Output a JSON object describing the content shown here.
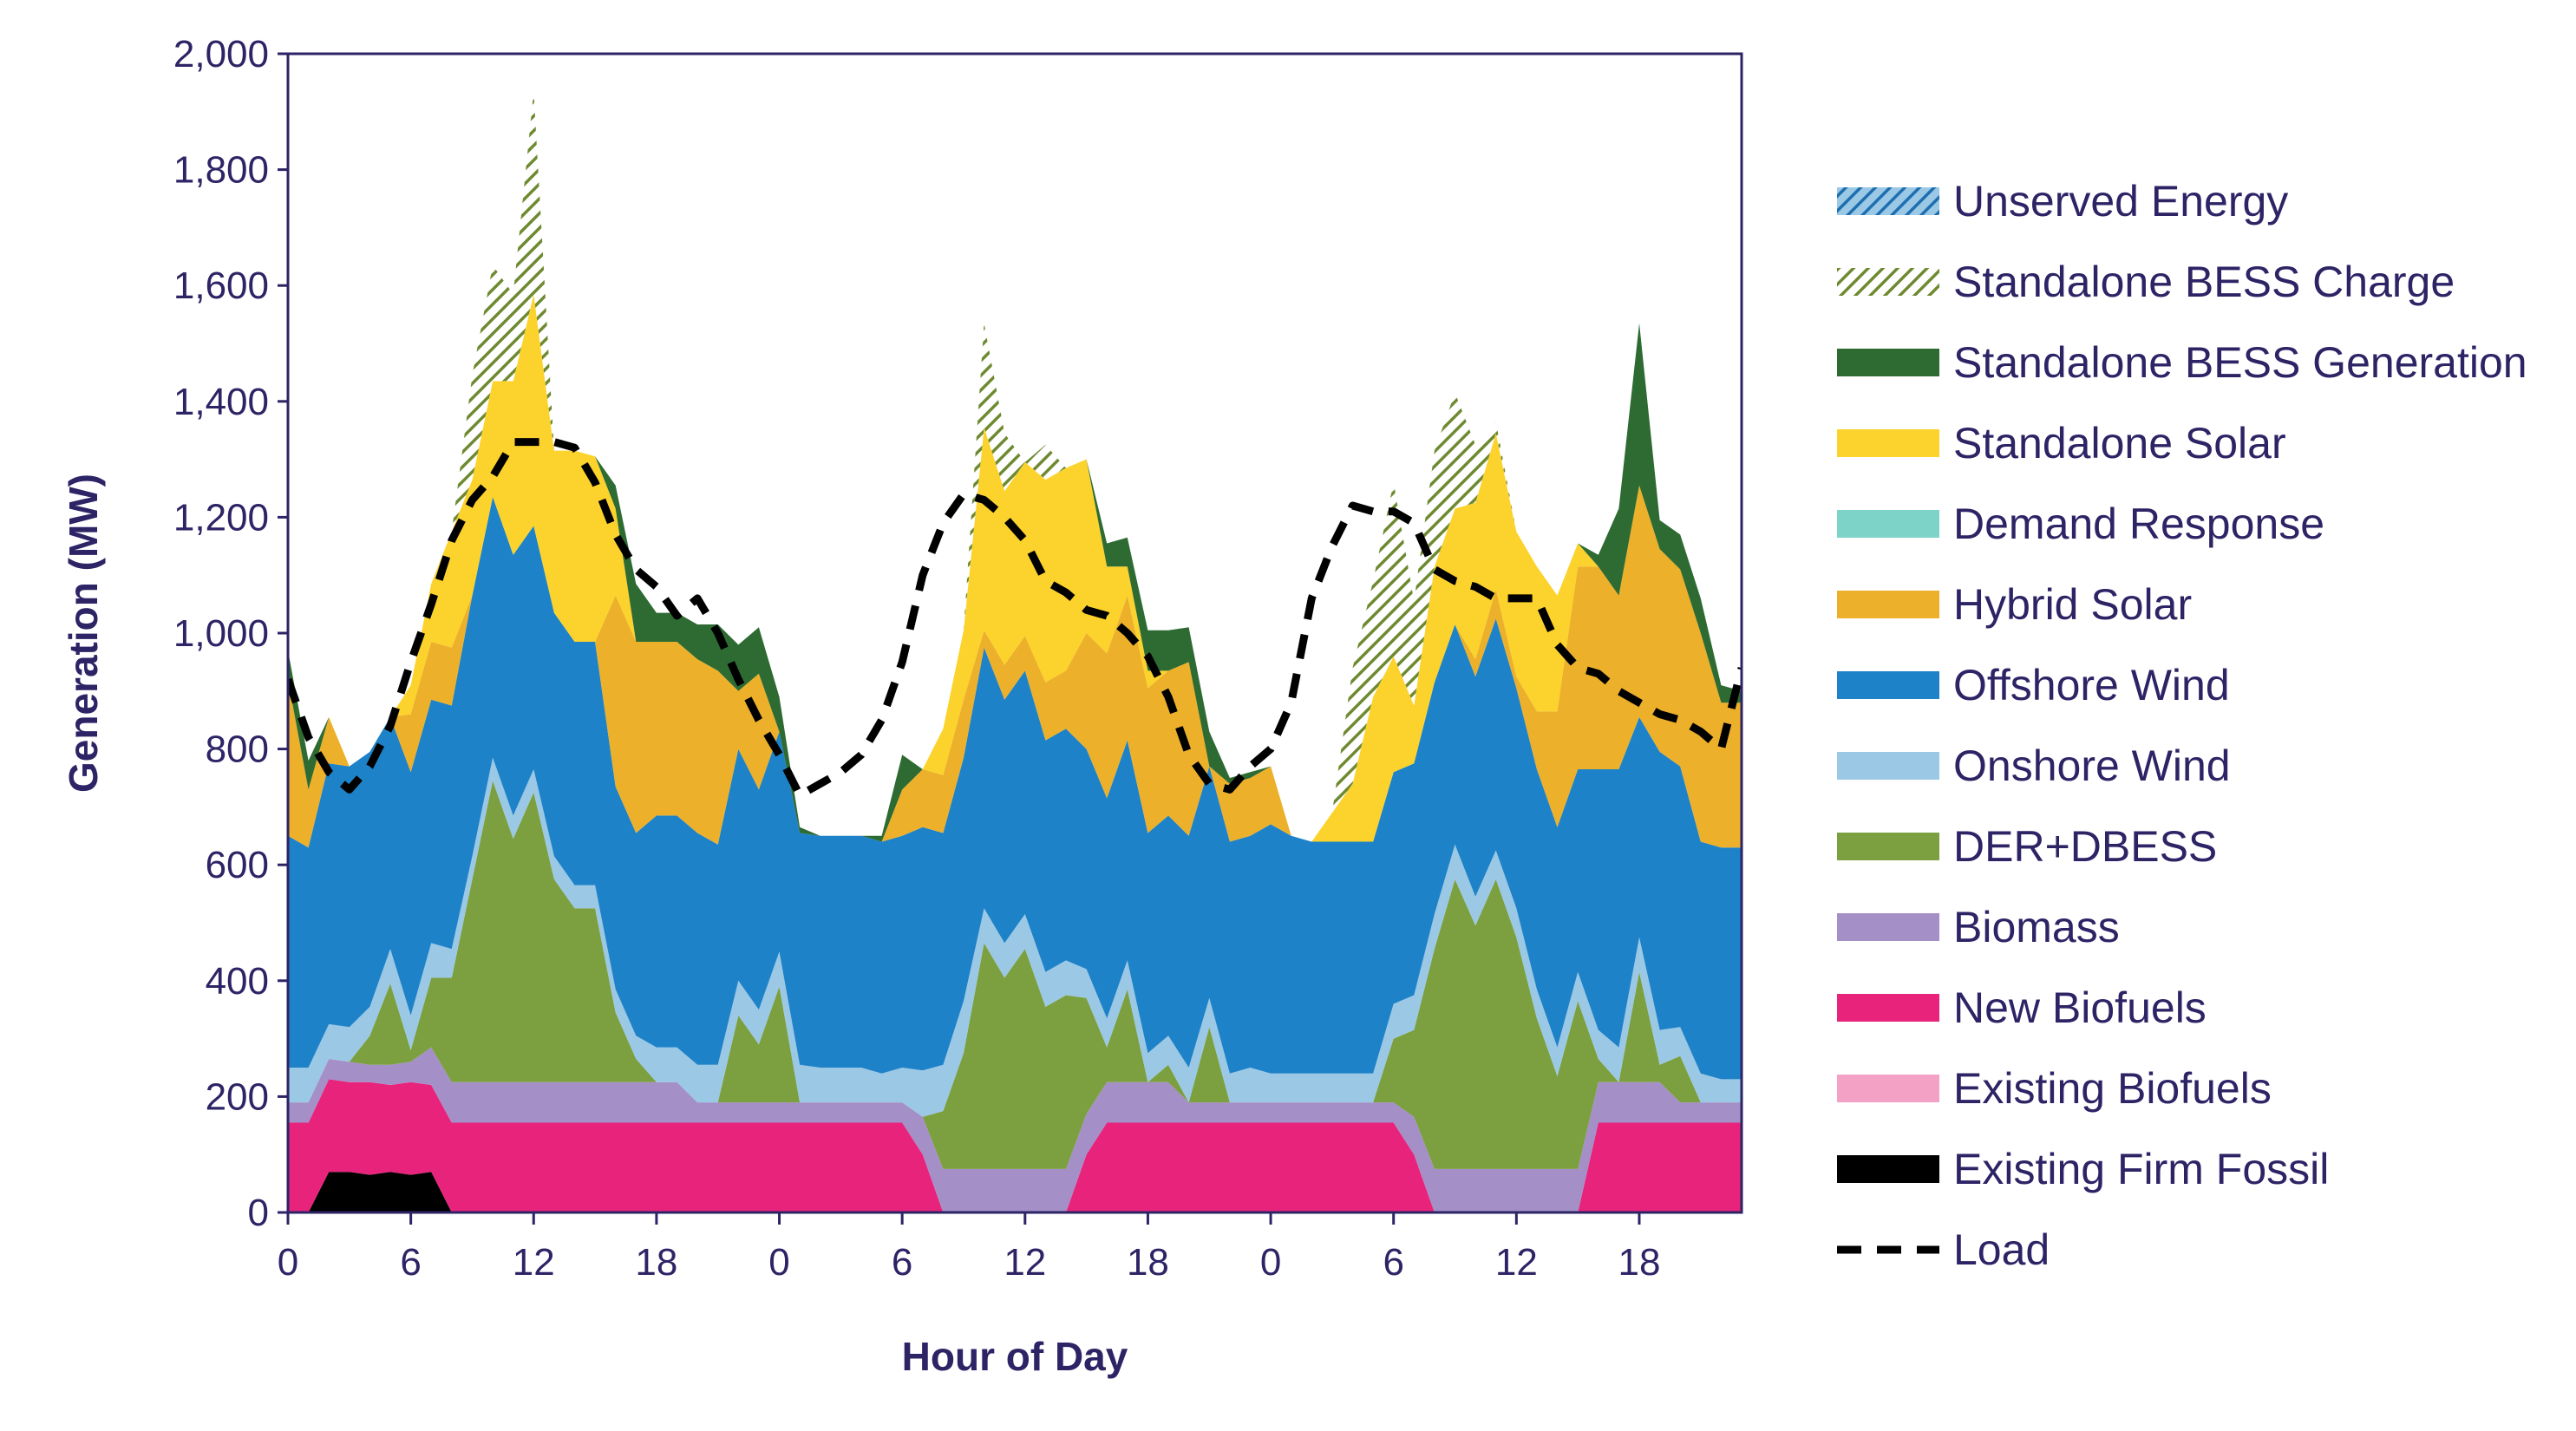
{
  "chart_data": {
    "type": "area",
    "title": "",
    "xlabel": "Hour of Day",
    "ylabel": "Generation (MW)",
    "ylim": [
      0,
      2000
    ],
    "yticks": [
      0,
      200,
      400,
      600,
      800,
      1000,
      1200,
      1400,
      1600,
      1800,
      2000
    ],
    "ytick_labels": [
      "0",
      "200",
      "400",
      "600",
      "800",
      "1,000",
      "1,200",
      "1,400",
      "1,600",
      "1,800",
      "2,000"
    ],
    "xlim": [
      0,
      71
    ],
    "xticks": [
      0,
      6,
      12,
      18,
      24,
      30,
      36,
      42,
      48,
      54,
      60,
      66
    ],
    "xtick_labels": [
      "0",
      "6",
      "12",
      "18",
      "0",
      "6",
      "12",
      "18",
      "0",
      "6",
      "12",
      "18"
    ],
    "legend_position": "right",
    "grid": false,
    "x": [
      0,
      1,
      2,
      3,
      4,
      5,
      6,
      7,
      8,
      9,
      10,
      11,
      12,
      13,
      14,
      15,
      16,
      17,
      18,
      19,
      20,
      21,
      22,
      23,
      24,
      25,
      26,
      27,
      28,
      29,
      30,
      31,
      32,
      33,
      34,
      35,
      36,
      37,
      38,
      39,
      40,
      41,
      42,
      43,
      44,
      45,
      46,
      47,
      48,
      49,
      50,
      51,
      52,
      53,
      54,
      55,
      56,
      57,
      58,
      59,
      60,
      61,
      62,
      63,
      64,
      65,
      66,
      67,
      68,
      69,
      70,
      71
    ],
    "series": [
      {
        "name": "Existing Firm Fossil",
        "color": "#000000",
        "pattern": "solid",
        "values": [
          0,
          0,
          70,
          70,
          65,
          70,
          65,
          70,
          0,
          0,
          0,
          0,
          0,
          0,
          0,
          0,
          0,
          0,
          0,
          0,
          0,
          0,
          0,
          0,
          0,
          0,
          0,
          0,
          0,
          0,
          0,
          0,
          0,
          0,
          0,
          0,
          0,
          0,
          0,
          0,
          0,
          0,
          0,
          0,
          0,
          0,
          0,
          0,
          0,
          0,
          0,
          0,
          0,
          0,
          0,
          0,
          0,
          0,
          0,
          0,
          0,
          0,
          0,
          0,
          0,
          0,
          0,
          0,
          0,
          0,
          0,
          0
        ]
      },
      {
        "name": "Existing Biofuels",
        "color": "#f4a1c6",
        "pattern": "solid",
        "values": [
          0,
          0,
          0,
          0,
          0,
          0,
          0,
          0,
          0,
          0,
          0,
          0,
          0,
          0,
          0,
          0,
          0,
          0,
          0,
          0,
          0,
          0,
          0,
          0,
          0,
          0,
          0,
          0,
          0,
          0,
          0,
          0,
          0,
          0,
          0,
          0,
          0,
          0,
          0,
          0,
          0,
          0,
          0,
          0,
          0,
          0,
          0,
          0,
          0,
          0,
          0,
          0,
          0,
          0,
          0,
          0,
          0,
          0,
          0,
          0,
          0,
          0,
          0,
          0,
          0,
          0,
          0,
          0,
          0,
          0,
          0,
          0
        ]
      },
      {
        "name": "New Biofuels",
        "color": "#e8237c",
        "pattern": "solid",
        "values": [
          155,
          155,
          160,
          155,
          160,
          150,
          160,
          150,
          155,
          155,
          155,
          155,
          155,
          155,
          155,
          155,
          155,
          155,
          155,
          155,
          155,
          155,
          155,
          155,
          155,
          155,
          155,
          155,
          155,
          155,
          155,
          100,
          0,
          0,
          0,
          0,
          0,
          0,
          0,
          100,
          155,
          155,
          155,
          155,
          155,
          155,
          155,
          155,
          155,
          155,
          155,
          155,
          155,
          155,
          155,
          100,
          0,
          0,
          0,
          0,
          0,
          0,
          0,
          0,
          155,
          155,
          155,
          155,
          155,
          155,
          155,
          155
        ]
      },
      {
        "name": "Biomass",
        "color": "#a48fc7",
        "pattern": "solid",
        "values": [
          35,
          35,
          35,
          35,
          30,
          35,
          35,
          65,
          70,
          70,
          70,
          70,
          70,
          70,
          70,
          70,
          70,
          70,
          70,
          70,
          35,
          35,
          35,
          35,
          35,
          35,
          35,
          35,
          35,
          35,
          35,
          65,
          75,
          75,
          75,
          75,
          75,
          75,
          75,
          70,
          70,
          70,
          70,
          70,
          35,
          35,
          35,
          35,
          35,
          35,
          35,
          35,
          35,
          35,
          35,
          65,
          75,
          75,
          75,
          75,
          75,
          75,
          75,
          75,
          70,
          70,
          70,
          70,
          35,
          35,
          35,
          35
        ]
      },
      {
        "name": "DER+DBESS",
        "color": "#7c9f3f",
        "pattern": "solid",
        "values": [
          0,
          0,
          0,
          0,
          50,
          140,
          20,
          120,
          180,
          350,
          520,
          420,
          500,
          350,
          300,
          300,
          120,
          40,
          0,
          0,
          0,
          0,
          150,
          100,
          200,
          0,
          0,
          0,
          0,
          0,
          0,
          0,
          100,
          200,
          390,
          330,
          380,
          280,
          300,
          200,
          60,
          160,
          0,
          30,
          0,
          130,
          0,
          0,
          0,
          0,
          0,
          0,
          0,
          0,
          110,
          150,
          380,
          500,
          420,
          500,
          400,
          260,
          160,
          290,
          40,
          0,
          190,
          30,
          80,
          0,
          0,
          0
        ]
      },
      {
        "name": "Onshore Wind",
        "color": "#9bc8e5",
        "pattern": "solid",
        "values": [
          60,
          60,
          60,
          60,
          50,
          60,
          60,
          60,
          50,
          40,
          40,
          40,
          40,
          40,
          40,
          40,
          40,
          40,
          60,
          60,
          65,
          65,
          60,
          60,
          60,
          65,
          60,
          60,
          60,
          50,
          60,
          80,
          80,
          90,
          60,
          60,
          60,
          60,
          60,
          50,
          50,
          50,
          50,
          50,
          60,
          50,
          50,
          60,
          50,
          50,
          50,
          50,
          50,
          50,
          60,
          60,
          60,
          60,
          50,
          50,
          50,
          50,
          50,
          50,
          50,
          60,
          60,
          60,
          50,
          50,
          40,
          40
        ]
      },
      {
        "name": "Offshore Wind",
        "color": "#1e82c8",
        "pattern": "solid",
        "values": [
          400,
          380,
          450,
          450,
          440,
          400,
          420,
          420,
          420,
          450,
          450,
          450,
          420,
          420,
          420,
          420,
          350,
          350,
          400,
          400,
          400,
          380,
          400,
          380,
          380,
          400,
          400,
          400,
          400,
          400,
          400,
          420,
          400,
          420,
          450,
          420,
          420,
          400,
          400,
          380,
          380,
          380,
          380,
          380,
          400,
          400,
          400,
          400,
          430,
          410,
          400,
          400,
          400,
          400,
          400,
          400,
          400,
          380,
          380,
          400,
          380,
          380,
          380,
          350,
          450,
          480,
          380,
          480,
          450,
          400,
          400,
          400
        ]
      },
      {
        "name": "Hybrid Solar",
        "color": "#ecb02a",
        "pattern": "solid",
        "values": [
          270,
          100,
          80,
          0,
          0,
          0,
          100,
          100,
          100,
          0,
          0,
          0,
          0,
          0,
          0,
          0,
          330,
          330,
          300,
          300,
          300,
          300,
          100,
          200,
          0,
          0,
          0,
          0,
          0,
          0,
          80,
          100,
          100,
          100,
          30,
          60,
          60,
          100,
          100,
          200,
          250,
          250,
          250,
          250,
          300,
          0,
          100,
          100,
          100,
          0,
          0,
          0,
          0,
          0,
          0,
          0,
          0,
          0,
          30,
          50,
          20,
          100,
          200,
          350,
          350,
          300,
          400,
          350,
          340,
          360,
          250,
          250
        ]
      },
      {
        "name": "Demand Response",
        "color": "#7dd3c8",
        "pattern": "solid",
        "values": [
          0,
          0,
          0,
          0,
          0,
          0,
          0,
          0,
          0,
          0,
          0,
          0,
          0,
          0,
          0,
          0,
          0,
          0,
          0,
          0,
          0,
          0,
          0,
          0,
          0,
          0,
          0,
          0,
          0,
          0,
          0,
          0,
          0,
          0,
          0,
          0,
          0,
          0,
          0,
          0,
          0,
          0,
          0,
          0,
          0,
          0,
          0,
          0,
          0,
          0,
          0,
          0,
          0,
          0,
          0,
          0,
          0,
          0,
          0,
          0,
          0,
          0,
          0,
          0,
          0,
          0,
          0,
          0,
          0,
          0,
          0,
          0
        ]
      },
      {
        "name": "Standalone Solar",
        "color": "#fcd22c",
        "pattern": "solid",
        "values": [
          0,
          0,
          0,
          0,
          0,
          0,
          50,
          100,
          200,
          200,
          200,
          300,
          400,
          280,
          330,
          320,
          150,
          0,
          0,
          0,
          0,
          0,
          0,
          0,
          0,
          0,
          0,
          0,
          0,
          0,
          0,
          0,
          80,
          120,
          350,
          300,
          300,
          350,
          350,
          300,
          150,
          50,
          30,
          0,
          0,
          0,
          0,
          0,
          0,
          0,
          0,
          50,
          100,
          250,
          200,
          100,
          200,
          200,
          270,
          270,
          250,
          250,
          200,
          40,
          0,
          0,
          0,
          0,
          0,
          0,
          0,
          0
        ]
      },
      {
        "name": "Standalone BESS Generation",
        "color": "#2e6b33",
        "pattern": "solid",
        "values": [
          50,
          50,
          0,
          0,
          0,
          0,
          0,
          0,
          0,
          0,
          0,
          0,
          0,
          0,
          0,
          0,
          40,
          100,
          50,
          50,
          60,
          80,
          80,
          80,
          60,
          10,
          0,
          0,
          0,
          10,
          60,
          0,
          0,
          0,
          0,
          0,
          0,
          0,
          0,
          0,
          40,
          50,
          70,
          70,
          60,
          60,
          10,
          10,
          0,
          0,
          0,
          0,
          0,
          0,
          0,
          0,
          0,
          0,
          0,
          0,
          0,
          0,
          0,
          0,
          20,
          150,
          280,
          50,
          60,
          60,
          30,
          20
        ]
      },
      {
        "name": "Standalone BESS Charge",
        "color": "#6e8a30",
        "pattern": "hatch",
        "values": [
          0,
          0,
          0,
          0,
          0,
          0,
          0,
          0,
          0,
          180,
          200,
          150,
          350,
          0,
          0,
          0,
          0,
          0,
          0,
          0,
          0,
          0,
          0,
          0,
          0,
          0,
          0,
          0,
          0,
          0,
          0,
          0,
          0,
          0,
          180,
          100,
          0,
          60,
          0,
          0,
          0,
          0,
          0,
          0,
          0,
          0,
          0,
          0,
          0,
          0,
          0,
          0,
          200,
          200,
          300,
          180,
          200,
          200,
          100,
          20,
          0,
          0,
          0,
          0,
          0,
          0,
          0,
          0,
          0,
          0,
          0,
          0
        ]
      },
      {
        "name": "Unserved Energy",
        "color": "#1e82c8",
        "pattern": "hatch",
        "values": [
          0,
          0,
          0,
          0,
          0,
          0,
          0,
          0,
          0,
          0,
          0,
          0,
          0,
          0,
          0,
          0,
          0,
          0,
          0,
          0,
          0,
          0,
          0,
          0,
          0,
          0,
          0,
          0,
          0,
          0,
          0,
          0,
          0,
          0,
          0,
          0,
          0,
          0,
          0,
          0,
          0,
          0,
          0,
          0,
          0,
          0,
          0,
          0,
          0,
          0,
          0,
          0,
          0,
          0,
          0,
          0,
          0,
          0,
          0,
          0,
          0,
          0,
          0,
          0,
          0,
          0,
          0,
          0,
          0,
          0,
          0,
          0
        ]
      }
    ],
    "load": {
      "name": "Load",
      "color": "#000000",
      "style": "dashed",
      "values": [
        920,
        820,
        760,
        730,
        770,
        840,
        950,
        1050,
        1160,
        1230,
        1270,
        1330,
        1330,
        1330,
        1320,
        1260,
        1170,
        1110,
        1080,
        1030,
        1060,
        1000,
        920,
        850,
        790,
        720,
        740,
        760,
        790,
        850,
        950,
        1100,
        1190,
        1240,
        1230,
        1200,
        1160,
        1090,
        1070,
        1040,
        1030,
        1000,
        960,
        890,
        790,
        740,
        730,
        770,
        800,
        880,
        1060,
        1150,
        1220,
        1210,
        1210,
        1190,
        1110,
        1090,
        1080,
        1060,
        1060,
        1060,
        980,
        940,
        930,
        900,
        880,
        860,
        850,
        830,
        800,
        940
      ]
    }
  },
  "legend": [
    {
      "label": "Unserved Energy",
      "color": "#1e82c8",
      "swatch": "hatch"
    },
    {
      "label": "Standalone BESS Charge",
      "color": "#6e8a30",
      "swatch": "hatch"
    },
    {
      "label": "Standalone BESS Generation",
      "color": "#2e6b33",
      "swatch": "solid"
    },
    {
      "label": "Standalone Solar",
      "color": "#fcd22c",
      "swatch": "solid"
    },
    {
      "label": "Demand Response",
      "color": "#7dd3c8",
      "swatch": "solid"
    },
    {
      "label": "Hybrid Solar",
      "color": "#ecb02a",
      "swatch": "solid"
    },
    {
      "label": "Offshore Wind",
      "color": "#1e82c8",
      "swatch": "solid"
    },
    {
      "label": "Onshore Wind",
      "color": "#9bc8e5",
      "swatch": "solid"
    },
    {
      "label": "DER+DBESS",
      "color": "#7c9f3f",
      "swatch": "solid"
    },
    {
      "label": "Biomass",
      "color": "#a48fc7",
      "swatch": "solid"
    },
    {
      "label": "New Biofuels",
      "color": "#e8237c",
      "swatch": "solid"
    },
    {
      "label": "Existing Biofuels",
      "color": "#f4a1c6",
      "swatch": "solid"
    },
    {
      "label": "Existing Firm Fossil",
      "color": "#000000",
      "swatch": "solid"
    },
    {
      "label": "Load",
      "color": "#000000",
      "swatch": "dashed"
    }
  ],
  "colors": {
    "axis": "#2d2466",
    "text": "#2d2466",
    "frame": "#2d2466"
  }
}
